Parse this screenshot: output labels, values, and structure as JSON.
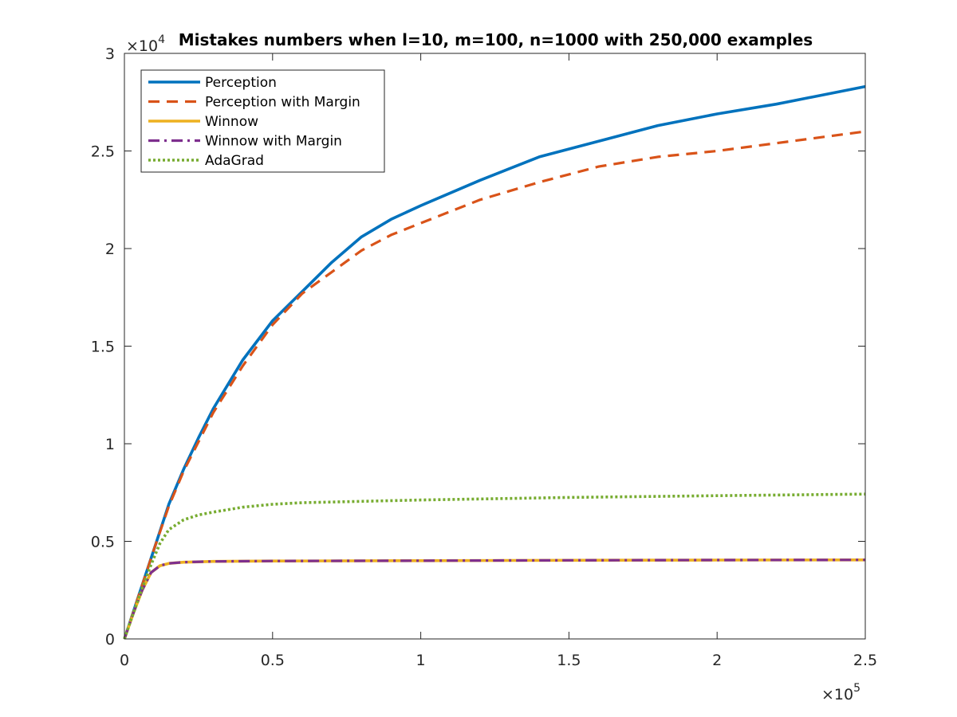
{
  "chart_data": {
    "type": "line",
    "title": "Mistakes numbers when l=10, m=100, n=1000 with 250,000 examples",
    "xlabel": "",
    "ylabel": "",
    "xlim": [
      0,
      250000
    ],
    "ylim": [
      0,
      30000
    ],
    "x_ticks": [
      0,
      50000,
      100000,
      150000,
      200000,
      250000
    ],
    "x_tick_labels": [
      "0",
      "0.5",
      "1",
      "1.5",
      "2",
      "2.5"
    ],
    "y_ticks": [
      0,
      5000,
      10000,
      15000,
      20000,
      25000,
      30000
    ],
    "y_tick_labels": [
      "0",
      "0.5",
      "1",
      "1.5",
      "2",
      "2.5",
      "3"
    ],
    "x_exponent": {
      "base": "×10",
      "power": "5"
    },
    "y_exponent": {
      "base": "×10",
      "power": "4"
    },
    "grid": false,
    "legend_position": "top-left",
    "series": [
      {
        "name": "Perception",
        "color": "#0072BD",
        "style": "solid",
        "x": [
          0,
          5000,
          10000,
          15000,
          20000,
          25000,
          30000,
          40000,
          50000,
          60000,
          70000,
          80000,
          90000,
          100000,
          120000,
          140000,
          160000,
          180000,
          200000,
          220000,
          250000
        ],
        "y": [
          0,
          2300,
          4600,
          6900,
          8700,
          10300,
          11800,
          14300,
          16300,
          17800,
          19300,
          20600,
          21500,
          22200,
          23500,
          24700,
          25500,
          26300,
          26900,
          27400,
          28300
        ]
      },
      {
        "name": "Perception with Margin",
        "color": "#D95319",
        "style": "dashed",
        "x": [
          0,
          5000,
          10000,
          15000,
          20000,
          25000,
          30000,
          40000,
          50000,
          60000,
          70000,
          80000,
          90000,
          100000,
          120000,
          140000,
          160000,
          180000,
          200000,
          220000,
          250000
        ],
        "y": [
          0,
          2300,
          4600,
          6800,
          8600,
          10100,
          11600,
          14000,
          16100,
          17700,
          18800,
          19900,
          20700,
          21300,
          22500,
          23400,
          24200,
          24700,
          25000,
          25400,
          26000
        ]
      },
      {
        "name": "Winnow",
        "color": "#EDB120",
        "style": "solid",
        "x": [
          0,
          3000,
          6000,
          9000,
          12000,
          15000,
          20000,
          30000,
          50000,
          100000,
          150000,
          200000,
          250000
        ],
        "y": [
          0,
          1300,
          2500,
          3400,
          3750,
          3870,
          3930,
          3970,
          3990,
          4010,
          4030,
          4040,
          4050
        ]
      },
      {
        "name": "Winnow with Margin",
        "color": "#7E2F8E",
        "style": "dashdot",
        "x": [
          0,
          3000,
          6000,
          9000,
          12000,
          15000,
          20000,
          30000,
          50000,
          100000,
          150000,
          200000,
          250000
        ],
        "y": [
          0,
          1300,
          2500,
          3400,
          3750,
          3870,
          3930,
          3970,
          3990,
          4010,
          4030,
          4040,
          4050
        ]
      },
      {
        "name": "AdaGrad",
        "color": "#77AC30",
        "style": "dotted",
        "x": [
          0,
          3000,
          6000,
          9000,
          12000,
          15000,
          20000,
          25000,
          30000,
          40000,
          50000,
          60000,
          80000,
          100000,
          150000,
          200000,
          250000
        ],
        "y": [
          0,
          1300,
          2600,
          3800,
          4900,
          5600,
          6100,
          6350,
          6500,
          6750,
          6900,
          6980,
          7050,
          7120,
          7250,
          7340,
          7420
        ]
      }
    ]
  }
}
